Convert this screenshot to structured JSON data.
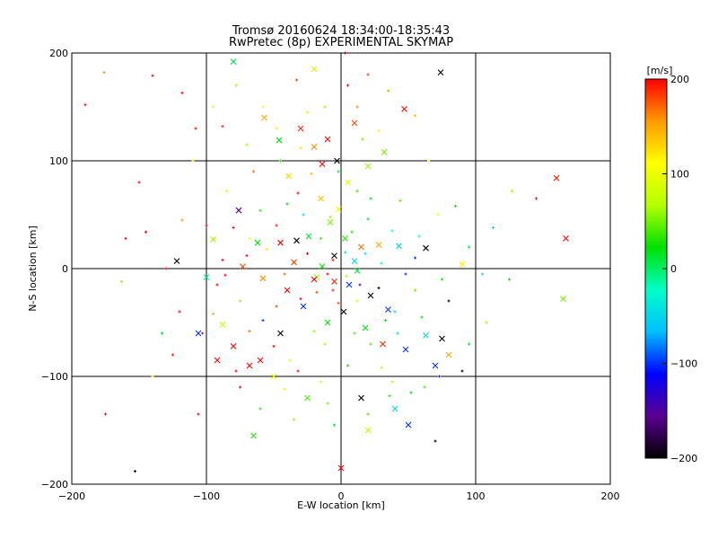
{
  "chart_data": {
    "type": "scatter",
    "title": "Tromsø 20160624 18:34:00-18:35:43",
    "subtitle": "RwPretec (8p) EXPERIMENTAL SKYMAP",
    "xlabel": "E-W location [km]",
    "ylabel": "N-S location [km]",
    "xlim": [
      -200,
      200
    ],
    "ylim": [
      -200,
      200
    ],
    "xticks": [
      -200,
      -100,
      0,
      100,
      200
    ],
    "yticks": [
      -200,
      -100,
      0,
      100,
      200
    ],
    "grid": true,
    "grid_values": {
      "x": [
        -100,
        0,
        100
      ],
      "y": [
        -100,
        0,
        100
      ]
    },
    "colorbar": {
      "label": "[m/s]",
      "range": [
        -200,
        200
      ],
      "ticks": [
        -200,
        -100,
        0,
        100,
        200
      ],
      "colors": [
        "#000000",
        "#5a0091",
        "#0000ff",
        "#00bfff",
        "#00ffc8",
        "#00e000",
        "#b4ff00",
        "#ffff00",
        "#ff9a00",
        "#ff0000"
      ]
    },
    "markers": {
      "dot": "+",
      "cross": "x"
    },
    "series": [
      {
        "marker": "cross",
        "points": [
          [
            -80,
            192,
            10
          ],
          [
            74,
            182,
            -200
          ],
          [
            -20,
            185,
            80
          ],
          [
            47,
            148,
            200
          ],
          [
            -57,
            140,
            150
          ],
          [
            -30,
            130,
            190
          ],
          [
            10,
            135,
            180
          ],
          [
            -46,
            119,
            20
          ],
          [
            32,
            108,
            50
          ],
          [
            -3,
            100,
            -200
          ],
          [
            -10,
            120,
            200
          ],
          [
            5,
            80,
            90
          ],
          [
            -15,
            65,
            140
          ],
          [
            -8,
            43,
            50
          ],
          [
            -24,
            30,
            10
          ],
          [
            15,
            20,
            170
          ],
          [
            -33,
            26,
            -200
          ],
          [
            -45,
            24,
            200
          ],
          [
            -62,
            24,
            20
          ],
          [
            -95,
            27,
            60
          ],
          [
            -122,
            7,
            -200
          ],
          [
            -100,
            -8,
            -10
          ],
          [
            -73,
            2,
            180
          ],
          [
            -58,
            -9,
            160
          ],
          [
            -35,
            6,
            180
          ],
          [
            -18,
            -8,
            60
          ],
          [
            -5,
            12,
            -200
          ],
          [
            6,
            -15,
            -100
          ],
          [
            10,
            7,
            -50
          ],
          [
            28,
            22,
            150
          ],
          [
            43,
            21,
            -50
          ],
          [
            63,
            19,
            -200
          ],
          [
            90,
            4,
            120
          ],
          [
            167,
            28,
            200
          ],
          [
            160,
            84,
            190
          ],
          [
            165,
            -28,
            50
          ],
          [
            -106,
            -60,
            -100
          ],
          [
            -88,
            -52,
            70
          ],
          [
            -80,
            -72,
            200
          ],
          [
            -60,
            -85,
            200
          ],
          [
            -45,
            -60,
            -200
          ],
          [
            -28,
            -35,
            -100
          ],
          [
            -10,
            -50,
            20
          ],
          [
            2,
            -40,
            -200
          ],
          [
            18,
            -55,
            20
          ],
          [
            31,
            -70,
            190
          ],
          [
            48,
            -75,
            -100
          ],
          [
            63,
            -62,
            -50
          ],
          [
            75,
            -65,
            -200
          ],
          [
            80,
            -80,
            150
          ],
          [
            70,
            -90,
            -100
          ],
          [
            -92,
            -85,
            200
          ],
          [
            -50,
            -100,
            100
          ],
          [
            -25,
            -120,
            40
          ],
          [
            15,
            -120,
            -200
          ],
          [
            40,
            -130,
            -50
          ],
          [
            50,
            -145,
            -100
          ],
          [
            -65,
            -155,
            30
          ],
          [
            20,
            -150,
            70
          ],
          [
            0,
            -185,
            200
          ],
          [
            -68,
            -90,
            200
          ],
          [
            -40,
            -20,
            200
          ],
          [
            -20,
            -10,
            200
          ],
          [
            -5,
            -12,
            190
          ],
          [
            22,
            -25,
            -200
          ],
          [
            35,
            -38,
            -100
          ],
          [
            -14,
            97,
            200
          ],
          [
            -39,
            86,
            130
          ],
          [
            -20,
            113,
            160
          ],
          [
            20,
            95,
            60
          ],
          [
            -14,
            2,
            20
          ],
          [
            3,
            28,
            30
          ],
          [
            -2,
            55,
            100
          ],
          [
            12,
            -2,
            10
          ],
          [
            -76,
            54,
            -150
          ]
        ]
      },
      {
        "marker": "dot",
        "points": [
          [
            -190,
            152,
            200
          ],
          [
            -176,
            182,
            160
          ],
          [
            -140,
            179,
            200
          ],
          [
            -118,
            163,
            200
          ],
          [
            -153,
            -188,
            -200
          ],
          [
            -175,
            -135,
            200
          ],
          [
            -150,
            80,
            200
          ],
          [
            -160,
            28,
            200
          ],
          [
            -163,
            -12,
            60
          ],
          [
            -125,
            -80,
            190
          ],
          [
            -106,
            -135,
            200
          ],
          [
            -95,
            150,
            120
          ],
          [
            -78,
            170,
            60
          ],
          [
            -58,
            150,
            100
          ],
          [
            -33,
            175,
            180
          ],
          [
            3,
            200,
            200
          ],
          [
            20,
            180,
            180
          ],
          [
            35,
            165,
            150
          ],
          [
            55,
            142,
            140
          ],
          [
            65,
            100,
            110
          ],
          [
            85,
            58,
            20
          ],
          [
            95,
            20,
            10
          ],
          [
            105,
            -5,
            -50
          ],
          [
            108,
            -50,
            60
          ],
          [
            95,
            -70,
            10
          ],
          [
            73,
            -100,
            -100
          ],
          [
            52,
            -115,
            20
          ],
          [
            38,
            -105,
            60
          ],
          [
            70,
            -160,
            -200
          ],
          [
            90,
            -95,
            -200
          ],
          [
            113,
            38,
            -50
          ],
          [
            127,
            72,
            60
          ],
          [
            145,
            65,
            200
          ],
          [
            125,
            -10,
            20
          ],
          [
            -133,
            -60,
            20
          ],
          [
            -140,
            -100,
            120
          ],
          [
            -145,
            34,
            200
          ],
          [
            -130,
            0,
            200
          ],
          [
            -120,
            -40,
            200
          ],
          [
            -108,
            130,
            200
          ],
          [
            -70,
            115,
            60
          ],
          [
            -45,
            100,
            30
          ],
          [
            -32,
            70,
            200
          ],
          [
            -12,
            150,
            60
          ],
          [
            16,
            120,
            50
          ],
          [
            44,
            63,
            40
          ],
          [
            58,
            30,
            -20
          ],
          [
            72,
            50,
            100
          ],
          [
            80,
            -30,
            -200
          ],
          [
            55,
            -20,
            50
          ],
          [
            40,
            -40,
            -50
          ],
          [
            22,
            -70,
            40
          ],
          [
            5,
            -90,
            20
          ],
          [
            -15,
            -105,
            80
          ],
          [
            -38,
            -85,
            90
          ],
          [
            -58,
            -48,
            -100
          ],
          [
            -75,
            -30,
            60
          ],
          [
            -92,
            -15,
            200
          ],
          [
            -100,
            40,
            200
          ],
          [
            -85,
            72,
            100
          ],
          [
            -65,
            90,
            170
          ],
          [
            -48,
            40,
            190
          ],
          [
            -28,
            50,
            -50
          ],
          [
            -18,
            -22,
            180
          ],
          [
            -6,
            8,
            190
          ],
          [
            8,
            34,
            30
          ],
          [
            20,
            46,
            10
          ],
          [
            30,
            5,
            -30
          ],
          [
            48,
            -5,
            -100
          ],
          [
            28,
            -18,
            -200
          ],
          [
            12,
            -30,
            90
          ],
          [
            -2,
            -32,
            180
          ],
          [
            -25,
            14,
            200
          ],
          [
            -42,
            -5,
            170
          ],
          [
            -55,
            18,
            120
          ],
          [
            -70,
            12,
            200
          ],
          [
            -88,
            8,
            200
          ],
          [
            -50,
            -72,
            200
          ],
          [
            -32,
            -95,
            200
          ],
          [
            -12,
            -70,
            60
          ],
          [
            10,
            -60,
            40
          ],
          [
            30,
            -92,
            70
          ],
          [
            42,
            -60,
            -50
          ],
          [
            60,
            -45,
            20
          ],
          [
            75,
            -10,
            20
          ],
          [
            5,
            170,
            200
          ],
          [
            -25,
            145,
            80
          ],
          [
            -110,
            100,
            120
          ],
          [
            -118,
            45,
            160
          ],
          [
            -75,
            -110,
            200
          ],
          [
            -60,
            -130,
            30
          ],
          [
            -35,
            -140,
            60
          ],
          [
            -5,
            -145,
            20
          ],
          [
            20,
            -135,
            40
          ],
          [
            36,
            -118,
            30
          ],
          [
            62,
            -110,
            40
          ],
          [
            -2,
            90,
            10
          ],
          [
            12,
            72,
            40
          ],
          [
            -22,
            88,
            140
          ],
          [
            -40,
            60,
            20
          ],
          [
            -60,
            54,
            30
          ],
          [
            -80,
            38,
            200
          ],
          [
            -15,
            28,
            40
          ],
          [
            3,
            15,
            -10
          ],
          [
            18,
            14,
            -50
          ],
          [
            -10,
            -5,
            200
          ],
          [
            4,
            -7,
            60
          ],
          [
            -30,
            -28,
            200
          ],
          [
            -48,
            -35,
            180
          ],
          [
            -68,
            -58,
            170
          ],
          [
            38,
            35,
            -20
          ],
          [
            55,
            10,
            -100
          ],
          [
            14,
            -15,
            -150
          ],
          [
            -6,
            -20,
            190
          ],
          [
            -78,
            -95,
            200
          ],
          [
            -88,
            132,
            190
          ],
          [
            -48,
            130,
            120
          ],
          [
            -30,
            112,
            80
          ],
          [
            12,
            150,
            160
          ],
          [
            28,
            128,
            100
          ],
          [
            22,
            65,
            20
          ],
          [
            -8,
            48,
            60
          ],
          [
            -68,
            28,
            100
          ],
          [
            33,
            -48,
            20
          ],
          [
            -20,
            -58,
            60
          ],
          [
            -42,
            -112,
            80
          ],
          [
            -10,
            -125,
            50
          ],
          [
            -103,
            -60,
            200
          ],
          [
            -95,
            -42,
            150
          ],
          [
            -86,
            -6,
            200
          ]
        ]
      }
    ]
  }
}
